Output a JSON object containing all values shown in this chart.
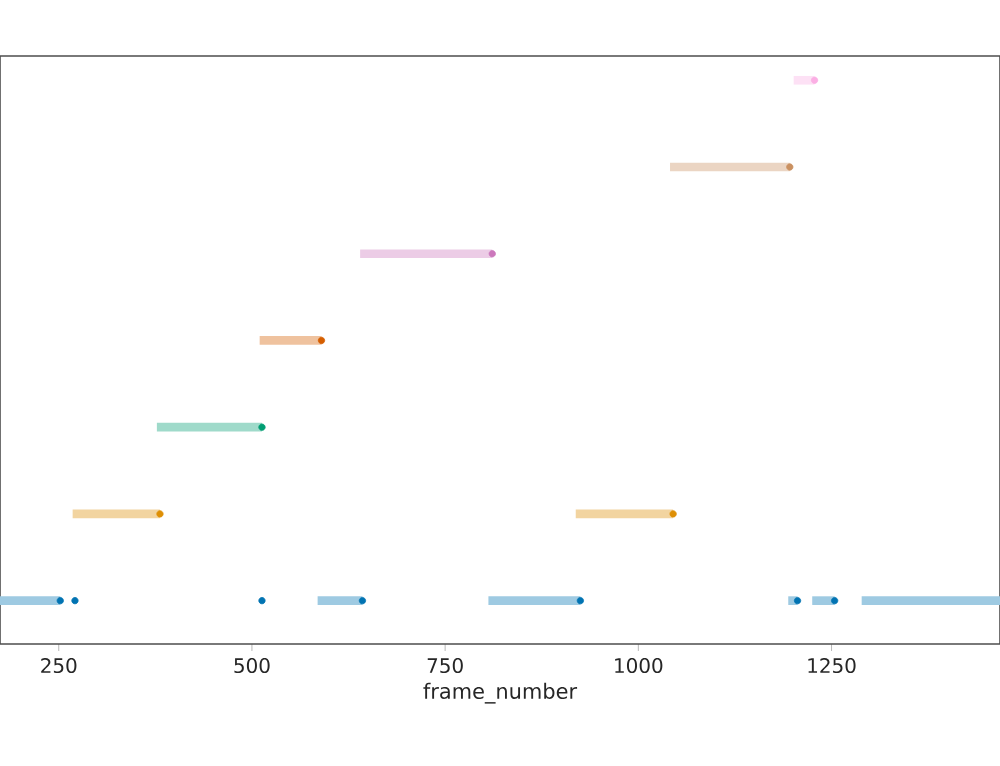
{
  "chart_data": {
    "type": "bar",
    "orientation": "horizontal",
    "xlabel": "frame_number",
    "categories": [
      null,
      null,
      null,
      null,
      null,
      null,
      null
    ],
    "xlim": [
      174,
      1468
    ],
    "xticks": [
      250,
      500,
      750,
      1000,
      1250
    ],
    "tick_labels": "x",
    "marker": "circle",
    "series": [
      {
        "colors": [
          "#fde1f5",
          "#ebd5c3",
          "#eccce6",
          "#efc29e",
          "#9fdaca",
          "#f2d4a0",
          "#9ecae2"
        ],
        "base": [
          1201,
          1041,
          640,
          510,
          377,
          268,
          174
        ],
        "values": [
          27,
          155,
          171,
          80,
          136,
          113,
          78
        ]
      },
      {
        "colors": [
          "#fde1f5",
          "#ebd5c3",
          "#eccce6",
          "#efc29e",
          "#9fdaca",
          "#f2d4a0",
          "#9ecae2"
        ],
        "base": [
          null,
          null,
          null,
          null,
          null,
          919,
          585
        ],
        "values": [
          null,
          null,
          null,
          null,
          null,
          126,
          58
        ]
      },
      {
        "color": "#9ecae2",
        "base": [
          null,
          null,
          null,
          null,
          null,
          null,
          806
        ],
        "values": [
          null,
          null,
          null,
          null,
          null,
          null,
          119
        ]
      },
      {
        "color": "#9ecae2",
        "base": [
          null,
          null,
          null,
          null,
          null,
          null,
          1194
        ],
        "values": [
          null,
          null,
          null,
          null,
          null,
          null,
          12
        ]
      },
      {
        "color": "#9ecae2",
        "base": [
          null,
          null,
          null,
          null,
          null,
          null,
          1225
        ],
        "values": [
          null,
          null,
          null,
          null,
          null,
          null,
          29
        ]
      },
      {
        "color": "#9ecae2",
        "base": [
          null,
          null,
          null,
          null,
          null,
          null,
          1289
        ],
        "values": [
          null,
          null,
          null,
          null,
          null,
          null,
          179
        ]
      },
      {
        "type": "scatter",
        "colors": [
          "#fbafe4",
          "#ca9161",
          "#cc78bc",
          "#d55e00",
          "#029e73",
          "#de8f05",
          "#0173b2"
        ],
        "values": [
          1228,
          1196,
          811,
          590,
          513,
          381,
          252
        ]
      },
      {
        "type": "scatter",
        "colors": [
          "#fbafe4",
          "#ca9161",
          "#cc78bc",
          "#d55e00",
          "#029e73",
          "#de8f05",
          "#0173b2"
        ],
        "values": [
          null,
          null,
          null,
          null,
          null,
          1045,
          271
        ]
      },
      {
        "type": "scatter",
        "color": "#0173b2",
        "values": [
          null,
          null,
          null,
          null,
          null,
          null,
          513
        ]
      },
      {
        "type": "scatter",
        "color": "#0173b2",
        "values": [
          null,
          null,
          null,
          null,
          null,
          null,
          643
        ]
      },
      {
        "type": "scatter",
        "color": "#0173b2",
        "values": [
          null,
          null,
          null,
          null,
          null,
          null,
          925
        ]
      },
      {
        "type": "scatter",
        "color": "#0173b2",
        "values": [
          null,
          null,
          null,
          null,
          null,
          null,
          1206
        ]
      },
      {
        "type": "scatter",
        "color": "#0173b2",
        "values": [
          null,
          null,
          null,
          null,
          null,
          null,
          1254
        ]
      }
    ]
  }
}
